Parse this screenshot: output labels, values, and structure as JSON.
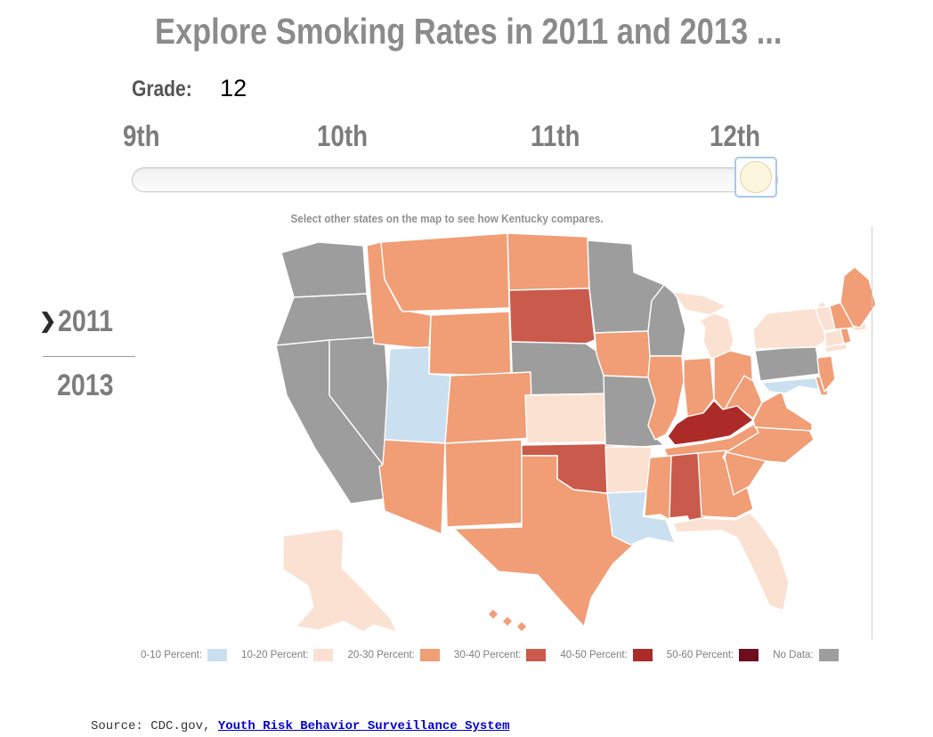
{
  "title": "Explore Smoking Rates in 2011 and 2013 ...",
  "grade": {
    "label": "Grade:",
    "value": "12"
  },
  "slider": {
    "ticks": [
      "9th",
      "10th",
      "11th",
      "12th"
    ],
    "selected_tick": "12th"
  },
  "instruction": "Select other states on the map to see how Kentucky compares.",
  "year_nav": {
    "chevron": "❯",
    "selected": "2011",
    "alternate": "2013"
  },
  "map": {
    "highlight_state": "Kentucky",
    "categories": {
      "0-10": "#cadfef",
      "10-20": "#fbe1d2",
      "20-30": "#f19d76",
      "30-40": "#ca5a4b",
      "40-50": "#ac2b28",
      "50-60": "#6e0d20",
      "no-data": "#9d9d9d"
    },
    "states": {
      "WA": "no-data",
      "OR": "no-data",
      "CA": "no-data",
      "NV": "no-data",
      "MN": "no-data",
      "WI": "no-data",
      "NE": "no-data",
      "MO": "no-data",
      "PA": "no-data",
      "UT": "0-10",
      "LA": "0-10",
      "MD": "0-10",
      "AK": "10-20",
      "KS": "10-20",
      "AR": "10-20",
      "MI": "10-20",
      "NY": "10-20",
      "FL": "10-20",
      "VT": "10-20",
      "MA": "10-20",
      "CT": "10-20",
      "ID": "20-30",
      "MT": "20-30",
      "WY": "20-30",
      "CO": "20-30",
      "AZ": "20-30",
      "NM": "20-30",
      "ND": "20-30",
      "TX": "20-30",
      "IA": "20-30",
      "IL": "20-30",
      "IN": "20-30",
      "OH": "20-30",
      "WV": "20-30",
      "VA": "20-30",
      "NC": "20-30",
      "SC": "20-30",
      "GA": "20-30",
      "TN": "20-30",
      "MS": "20-30",
      "ME": "20-30",
      "NH": "20-30",
      "NJ": "20-30",
      "DE": "20-30",
      "RI": "20-30",
      "HI": "20-30",
      "SD": "30-40",
      "OK": "30-40",
      "AL": "30-40",
      "KY": "40-50"
    }
  },
  "legend": {
    "items": [
      {
        "label": "0-10 Percent:",
        "category": "0-10"
      },
      {
        "label": "10-20 Percent:",
        "category": "10-20"
      },
      {
        "label": "20-30 Percent:",
        "category": "20-30"
      },
      {
        "label": "30-40 Percent:",
        "category": "30-40"
      },
      {
        "label": "40-50 Percent:",
        "category": "40-50"
      },
      {
        "label": "50-60 Percent:",
        "category": "50-60"
      },
      {
        "label": "No Data:",
        "category": "no-data"
      }
    ]
  },
  "source": {
    "prefix": "Source: CDC.gov, ",
    "link_text": "Youth Risk Behavior Surveillance System"
  }
}
